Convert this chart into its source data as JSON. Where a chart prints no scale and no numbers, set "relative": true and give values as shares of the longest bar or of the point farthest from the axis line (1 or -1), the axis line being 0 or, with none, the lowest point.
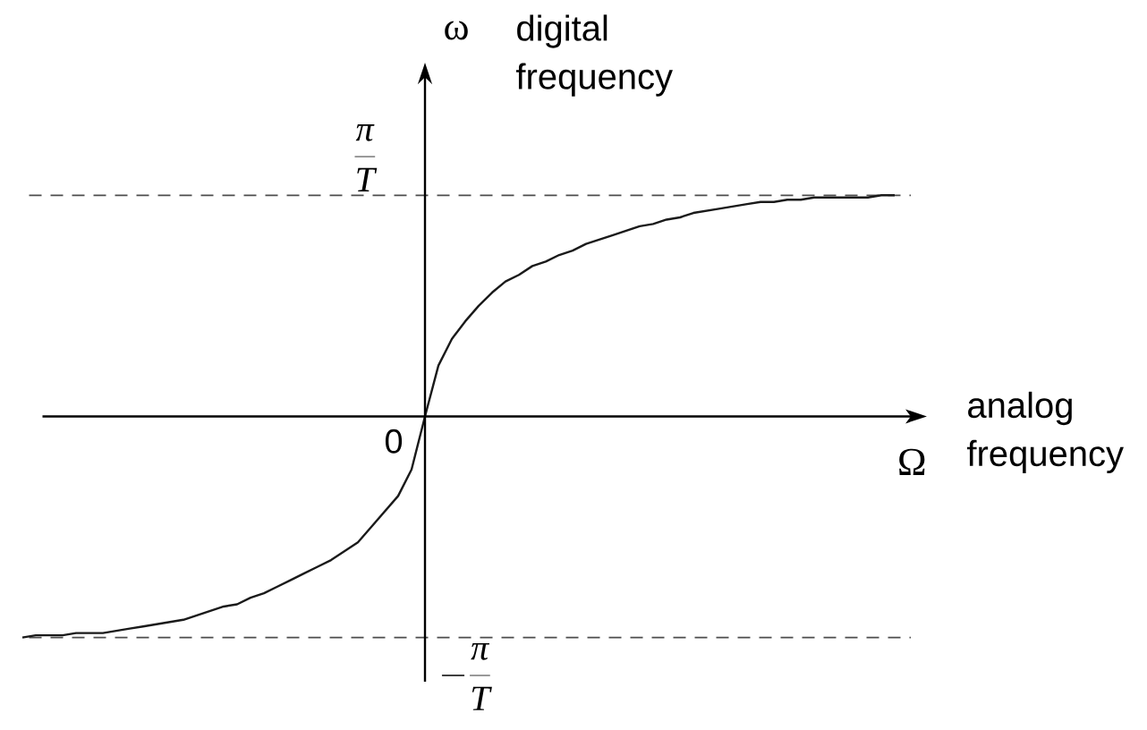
{
  "chart_data": {
    "type": "line",
    "relative": true,
    "categories": [
      null,
      null,
      null,
      null,
      null,
      null,
      null,
      null,
      null,
      null,
      null,
      null,
      null,
      null,
      null,
      null,
      null,
      null,
      null,
      null,
      null,
      null,
      null,
      null,
      null,
      null,
      null,
      null,
      null,
      null,
      null,
      null,
      null,
      null,
      null,
      null,
      null,
      null,
      null,
      null,
      null,
      null,
      null,
      null,
      null,
      null,
      null,
      null,
      null,
      null,
      null,
      null,
      null,
      null,
      null,
      null,
      null,
      null,
      null,
      null,
      null,
      null,
      null,
      null,
      null,
      null
    ],
    "values": [
      -1,
      -0.99,
      -0.99,
      -0.99,
      -0.98,
      -0.98,
      -0.98,
      -0.97,
      -0.96,
      -0.95,
      -0.94,
      -0.93,
      -0.92,
      -0.9,
      -0.88,
      -0.86,
      -0.85,
      -0.82,
      -0.8,
      -0.77,
      -0.74,
      -0.71,
      -0.68,
      -0.65,
      -0.61,
      -0.57,
      -0.5,
      -0.43,
      -0.36,
      -0.24,
      0,
      0.23,
      0.35,
      0.43,
      0.5,
      0.56,
      0.61,
      0.64,
      0.68,
      0.7,
      0.73,
      0.75,
      0.78,
      0.8,
      0.82,
      0.84,
      0.86,
      0.87,
      0.89,
      0.9,
      0.92,
      0.93,
      0.94,
      0.95,
      0.96,
      0.97,
      0.97,
      0.98,
      0.98,
      0.99,
      0.99,
      0.99,
      0.99,
      0.99,
      1,
      1
    ],
    "color": "#1a1a1a",
    "ylabel": "ω",
    "xlabel": "Ω",
    "annotations": [
      "digital frequency",
      "analog frequency",
      "0"
    ],
    "ref_lines": [
      {
        "axis": "y",
        "value": 1,
        "label": "\\frac{\\pi}{T}",
        "color": "#4d4d4d",
        "line_style": "dashed"
      },
      {
        "axis": "y",
        "value": -1,
        "label": "-\\frac{\\pi}{T}",
        "color": "#4d4d4d",
        "line_style": "dashed"
      }
    ]
  }
}
